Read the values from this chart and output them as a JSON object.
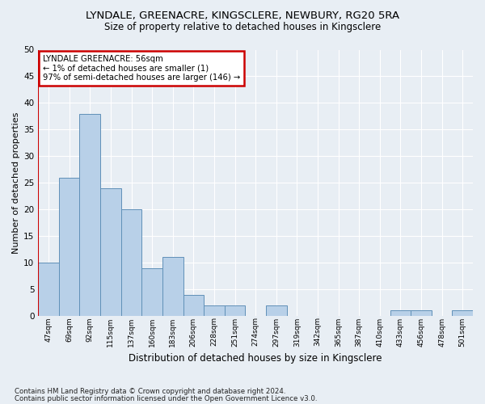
{
  "title1": "LYNDALE, GREENACRE, KINGSCLERE, NEWBURY, RG20 5RA",
  "title2": "Size of property relative to detached houses in Kingsclere",
  "xlabel": "Distribution of detached houses by size in Kingsclere",
  "ylabel": "Number of detached properties",
  "bar_values": [
    10,
    26,
    38,
    24,
    20,
    9,
    11,
    4,
    2,
    2,
    0,
    2,
    0,
    0,
    0,
    0,
    0,
    1,
    1,
    0,
    1
  ],
  "bar_labels": [
    "47sqm",
    "69sqm",
    "92sqm",
    "115sqm",
    "137sqm",
    "160sqm",
    "183sqm",
    "206sqm",
    "228sqm",
    "251sqm",
    "274sqm",
    "297sqm",
    "319sqm",
    "342sqm",
    "365sqm",
    "387sqm",
    "410sqm",
    "433sqm",
    "456sqm",
    "478sqm",
    "501sqm"
  ],
  "bar_color": "#b8d0e8",
  "bar_edge_color": "#6090b8",
  "ylim": [
    0,
    50
  ],
  "yticks": [
    0,
    5,
    10,
    15,
    20,
    25,
    30,
    35,
    40,
    45,
    50
  ],
  "annotation_title": "LYNDALE GREENACRE: 56sqm",
  "annotation_line1": "← 1% of detached houses are smaller (1)",
  "annotation_line2": "97% of semi-detached houses are larger (146) →",
  "annotation_box_color": "#ffffff",
  "annotation_box_edge": "#cc0000",
  "marker_color": "#cc0000",
  "footer1": "Contains HM Land Registry data © Crown copyright and database right 2024.",
  "footer2": "Contains public sector information licensed under the Open Government Licence v3.0.",
  "fig_background_color": "#e8eef4",
  "plot_background_color": "#e8eef4",
  "grid_color": "#ffffff"
}
